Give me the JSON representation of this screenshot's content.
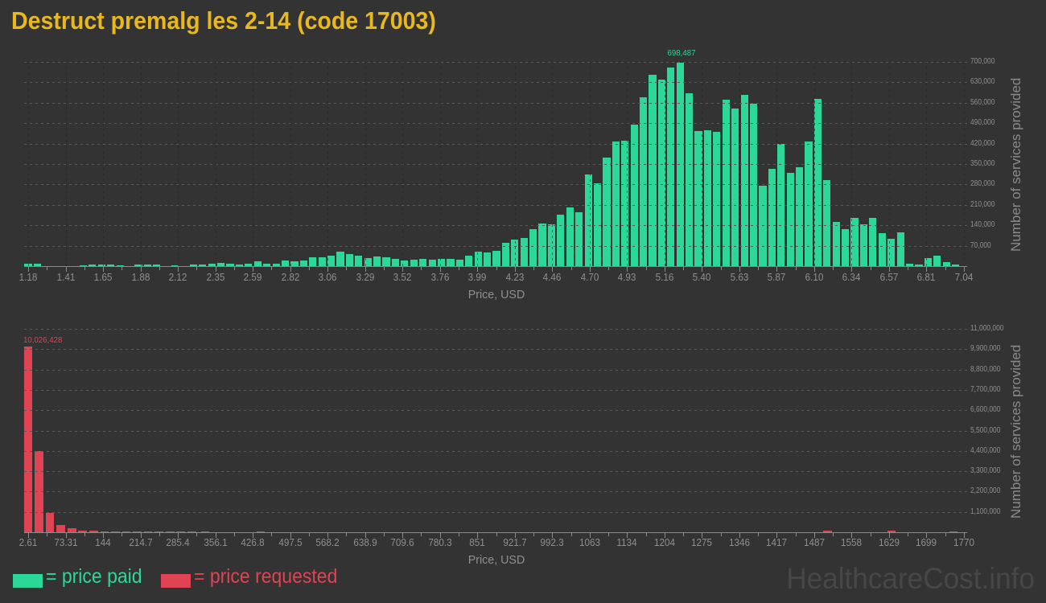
{
  "title": "Destruct premalg les 2-14 (code 17003)",
  "watermark": "HealthcareCost.info",
  "legend": {
    "paid_label": "= price paid",
    "requested_label": "= price requested"
  },
  "colors": {
    "background": "#333333",
    "paid_green": "#2bd897",
    "requested_red": "#e04351",
    "title_gold": "#e9b81c",
    "axis_text_gray": "#8f8f8f",
    "gridline_gray": "#585858",
    "watermark_gray": "#474747"
  },
  "chart_data": [
    {
      "type": "bar",
      "series_name": "price paid",
      "color": "#2bd897",
      "xlabel": "Price, USD",
      "ylabel": "Number of services provided",
      "grid": true,
      "legend_position": "bottom-left",
      "x_min": 1.18,
      "x_max": 7.04,
      "bin_width": 0.0575,
      "ylim": [
        0,
        700000
      ],
      "x_tick_labels": [
        "1.18",
        "1.41",
        "1.65",
        "1.88",
        "2.12",
        "2.35",
        "2.59",
        "2.82",
        "3.06",
        "3.29",
        "3.52",
        "3.76",
        "3.99",
        "4.23",
        "4.46",
        "4.70",
        "4.93",
        "5.16",
        "5.40",
        "5.63",
        "5.87",
        "6.10",
        "6.34",
        "6.57",
        "6.81",
        "7.04"
      ],
      "y_tick_labels": [
        "70,000",
        "140,000",
        "210,000",
        "280,000",
        "350,000",
        "420,000",
        "490,000",
        "560,000",
        "630,000",
        "700,000"
      ],
      "peak_label": "698,487",
      "peak_value": 698487,
      "values": [
        8000,
        8000,
        0,
        0,
        0,
        0,
        4000,
        5000,
        5000,
        5000,
        4000,
        0,
        5000,
        5000,
        6000,
        0,
        4000,
        0,
        5000,
        6000,
        7000,
        11000,
        8000,
        6000,
        9000,
        17000,
        9000,
        7000,
        19000,
        16000,
        20000,
        29000,
        31000,
        36000,
        50000,
        41000,
        37000,
        27000,
        34000,
        31000,
        26000,
        20000,
        22000,
        24000,
        21000,
        25000,
        25000,
        22000,
        36000,
        49000,
        47000,
        51000,
        81000,
        91000,
        97000,
        127000,
        147000,
        143000,
        176000,
        200000,
        186000,
        315000,
        285000,
        373000,
        426000,
        429000,
        486000,
        578000,
        656000,
        640000,
        681000,
        698487,
        592000,
        463000,
        467000,
        460000,
        570000,
        539000,
        586000,
        558000,
        276000,
        334000,
        420000,
        319000,
        340000,
        426000,
        573000,
        294000,
        152000,
        127000,
        166000,
        143000,
        166000,
        112000,
        94000,
        115000,
        8000,
        5000,
        28000,
        36000,
        13000,
        5000
      ]
    },
    {
      "type": "bar",
      "series_name": "price requested",
      "color": "#e04351",
      "xlabel": "Price, USD",
      "ylabel": "Number of services provided",
      "grid": true,
      "x_min": 2.61,
      "x_max": 1770,
      "bin_width": 20.6,
      "ylim": [
        0,
        11000000
      ],
      "x_tick_labels": [
        "2.61",
        "73.31",
        "144",
        "214.7",
        "285.4",
        "356.1",
        "426.8",
        "497.5",
        "568.2",
        "638.9",
        "709.6",
        "780.3",
        "851",
        "921.7",
        "992.3",
        "1063",
        "1134",
        "1204",
        "1275",
        "1346",
        "1417",
        "1487",
        "1558",
        "1629",
        "1699",
        "1770"
      ],
      "y_tick_labels": [
        "1,100,000",
        "2,200,000",
        "3,300,000",
        "4,400,000",
        "5,500,000",
        "6,600,000",
        "7,700,000",
        "8,800,000",
        "9,900,000",
        "11,000,000"
      ],
      "peak_label": "10,026,428",
      "peak_value": 10026428,
      "bars": [
        [
          2.61,
          10026428
        ],
        [
          23.2,
          4400000
        ],
        [
          43.8,
          1050000
        ],
        [
          64.4,
          390000
        ],
        [
          85.0,
          220000
        ],
        [
          105.6,
          80000
        ],
        [
          126.2,
          70000
        ],
        [
          146.8,
          60000
        ],
        [
          167.4,
          60000
        ],
        [
          188.0,
          55000
        ],
        [
          208.6,
          50000
        ],
        [
          229.2,
          60000
        ],
        [
          249.8,
          45000
        ],
        [
          270.4,
          40000
        ],
        [
          291.0,
          40000
        ],
        [
          311.6,
          35000
        ],
        [
          337,
          60000
        ],
        [
          442,
          40000
        ],
        [
          1512,
          70000
        ],
        [
          1633,
          70000
        ],
        [
          1750,
          60000
        ]
      ]
    }
  ]
}
